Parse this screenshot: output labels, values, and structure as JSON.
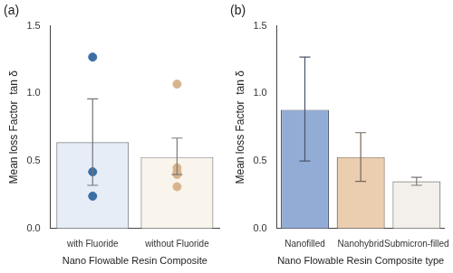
{
  "chart_data": [
    {
      "type": "bar",
      "title": "(a)",
      "categories": [
        "with Fluoride",
        "without Fluoride"
      ],
      "x_label": "Nano Flowable Resin Composite",
      "y_label": "Mean loss Factor  tan δ",
      "ylim": [
        0,
        1.5
      ],
      "yticks": [
        {
          "value": 0,
          "label": "0.0"
        },
        {
          "value": 0.5,
          "label": "0.5"
        },
        {
          "value": 1,
          "label": "1.0"
        },
        {
          "value": 1.5,
          "label": "1.5"
        }
      ],
      "grid": false,
      "series": [
        {
          "type": "bar",
          "values": [
            0.64,
            0.53
          ],
          "colors": [
            "#e6edf7",
            "#faf5ec"
          ],
          "error_low": [
            0.32,
            0.4
          ],
          "error_high": [
            0.96,
            0.67
          ]
        },
        {
          "type": "scatter",
          "marker": "circle",
          "values": [
            [
              1.27,
              0.42,
              0.24
            ],
            [
              1.07,
              0.45,
              0.42,
              0.4,
              0.31
            ]
          ],
          "colors": [
            "#3a6ea5",
            "#d8b48e"
          ]
        }
      ]
    },
    {
      "type": "bar",
      "title": "(b)",
      "categories": [
        "Nanofilled",
        "Nanohybrid",
        "Submicron-filled"
      ],
      "x_label": "Nano Flowable Resin Composite type",
      "y_label": "Mean loss Factor  tan δ",
      "ylim": [
        0,
        1.5
      ],
      "yticks": [
        {
          "value": 0,
          "label": "0.0"
        },
        {
          "value": 0.5,
          "label": "0.5"
        },
        {
          "value": 1,
          "label": "1.0"
        },
        {
          "value": 1.5,
          "label": "1.5"
        }
      ],
      "grid": false,
      "series": [
        {
          "type": "bar",
          "values": [
            0.88,
            0.53,
            0.35
          ],
          "colors": [
            "#93acd6",
            "#ebcdb0",
            "#f3f0eb"
          ],
          "error_low": [
            0.5,
            0.35,
            0.32
          ],
          "error_high": [
            1.27,
            0.71,
            0.38
          ]
        }
      ]
    }
  ]
}
